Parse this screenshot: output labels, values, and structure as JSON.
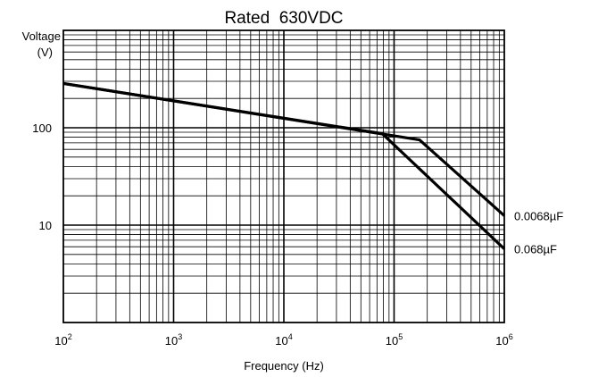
{
  "chart_data": {
    "type": "line",
    "title": "Rated  630VDC",
    "ylabel_line1": "Voltage",
    "ylabel_line2": "(V)",
    "xlabel": "Frequency (Hz)",
    "x_scale": "log",
    "y_scale": "log",
    "xlim": [
      100,
      1000000
    ],
    "ylim": [
      1,
      1000
    ],
    "grid": true,
    "x_ticks": [
      {
        "base": "10",
        "exp": "2",
        "value": 100
      },
      {
        "base": "10",
        "exp": "3",
        "value": 1000
      },
      {
        "base": "10",
        "exp": "4",
        "value": 10000
      },
      {
        "base": "10",
        "exp": "5",
        "value": 100000
      },
      {
        "base": "10",
        "exp": "6",
        "value": 1000000
      }
    ],
    "y_ticks": [
      {
        "label": "100",
        "value": 100
      },
      {
        "label": "10",
        "value": 10
      }
    ],
    "series": [
      {
        "name": "0.0068µF",
        "points": [
          [
            100,
            285
          ],
          [
            170000,
            75
          ],
          [
            1000000,
            12.5
          ]
        ]
      },
      {
        "name": "0.068µF",
        "points": [
          [
            100,
            285
          ],
          [
            78000,
            87
          ],
          [
            1000000,
            5.7
          ]
        ]
      }
    ]
  }
}
